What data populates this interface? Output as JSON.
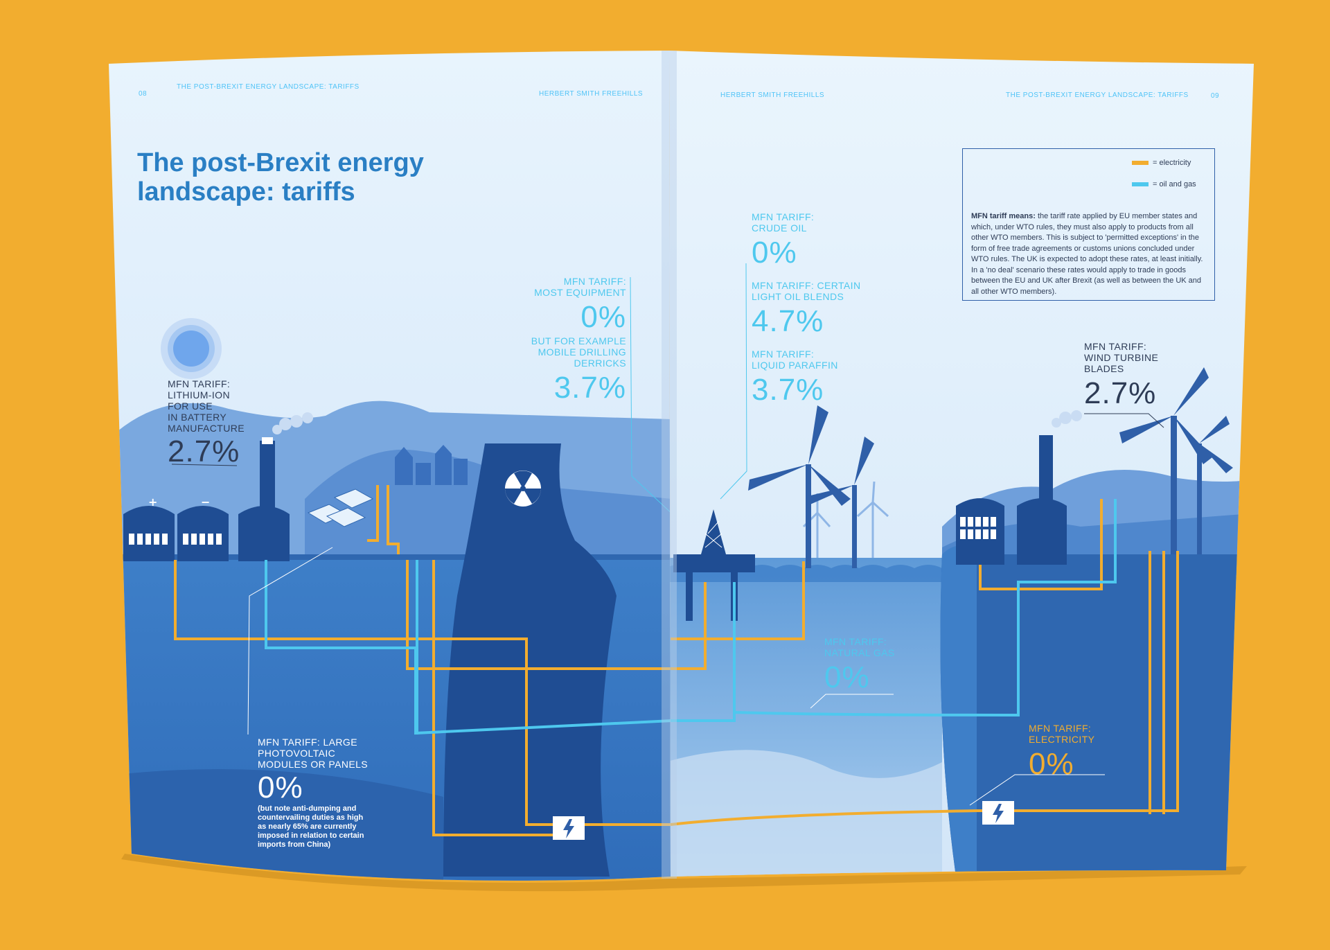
{
  "header": {
    "left_page_number": "08",
    "left_section": "THE POST-BREXIT ENERGY LANDSCAPE: TARIFFS",
    "left_firm": "HERBERT SMITH FREEHILLS",
    "right_firm": "HERBERT SMITH FREEHILLS",
    "right_section": "THE POST-BREXIT ENERGY LANDSCAPE: TARIFFS",
    "right_page_number": "09"
  },
  "title": {
    "line1": "The post-Brexit energy",
    "line2": "landscape: tariffs"
  },
  "legend": {
    "electricity": "= electricity",
    "oil_gas": "= oil and gas",
    "electricity_color": "#f2ad2f",
    "oil_gas_color": "#4ec8ee"
  },
  "definition": {
    "term": "MFN tariff means:",
    "text": " the tariff rate applied by EU member states and which, under WTO rules, they must also apply to products from all other WTO members. This is subject to 'permitted exceptions' in the form of free trade agreements or customs unions concluded under WTO rules. The UK is expected to adopt these rates, at least initially. In a 'no deal' scenario these rates would apply to trade in goods between the EU and UK after Brexit (as well as between the UK and all other WTO members)."
  },
  "tariffs": {
    "lithium": {
      "l1": "MFN TARIFF:",
      "l2": "LITHIUM-ION",
      "l3": "FOR USE",
      "l4": "IN BATTERY",
      "l5": "MANUFACTURE",
      "value": "2.7%"
    },
    "equipment": {
      "l1": "MFN TARIFF:",
      "l2": "MOST EQUIPMENT",
      "value": "0%",
      "ex1": "BUT FOR EXAMPLE",
      "ex2": "MOBILE DRILLING",
      "ex3": "DERRICKS",
      "ex_value": "3.7%"
    },
    "crude": {
      "l1": "MFN TARIFF:",
      "l2": "CRUDE OIL",
      "value": "0%"
    },
    "light_oil": {
      "l1": "MFN TARIFF: CERTAIN",
      "l2": "LIGHT OIL BLENDS",
      "value": "4.7%"
    },
    "paraffin": {
      "l1": "MFN TARIFF:",
      "l2": "LIQUID PARAFFIN",
      "value": "3.7%"
    },
    "wind": {
      "l1": "MFN TARIFF:",
      "l2": "WIND TURBINE",
      "l3": "BLADES",
      "value": "2.7%"
    },
    "gas": {
      "l1": "MFN TARIFF:",
      "l2": "NATURAL GAS",
      "value": "0%"
    },
    "electricity": {
      "l1": "MFN TARIFF:",
      "l2": "ELECTRICITY",
      "value": "0%"
    },
    "pv": {
      "l1": "MFN TARIFF: LARGE",
      "l2": "PHOTOVOLTAIC",
      "l3": "MODULES OR PANELS",
      "value": "0%",
      "n1": "(but note anti-dumping and",
      "n2": "countervailing duties as high",
      "n3": "as nearly 65% are currently",
      "n4": "imposed in relation to certain",
      "n5": "imports from China)"
    }
  },
  "icons": [
    "nuclear-icon",
    "lightning-icon",
    "plus-icon",
    "minus-icon",
    "sun-icon",
    "wind-turbine-icon",
    "oil-rig-icon",
    "solar-panel-icon"
  ]
}
